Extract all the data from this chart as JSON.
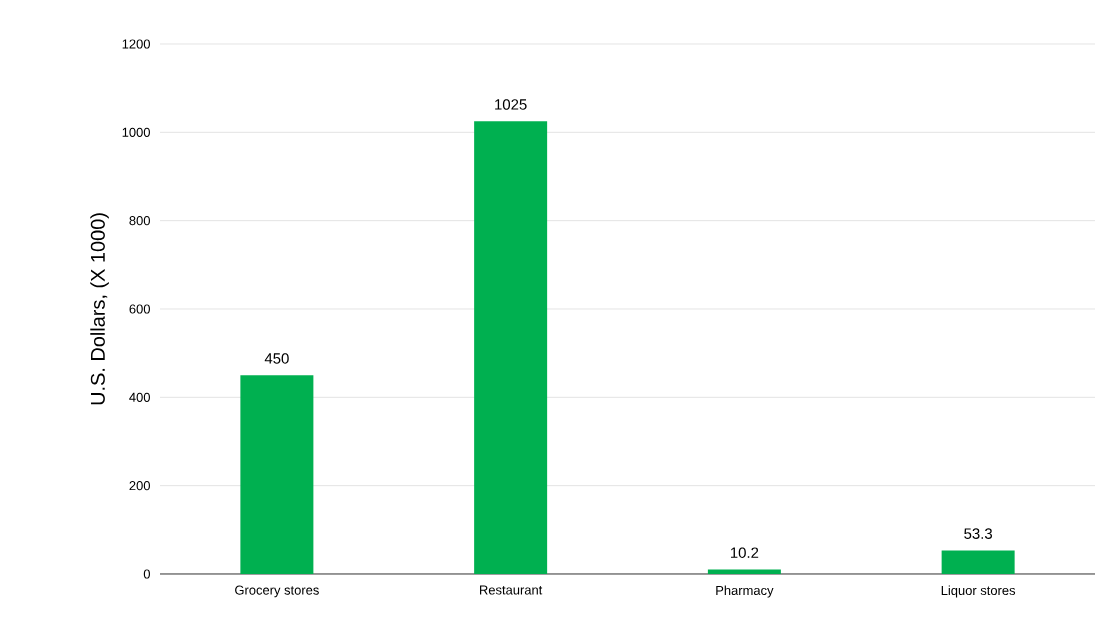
{
  "chart_data": {
    "type": "bar",
    "ylabel": "U.S. Dollars, (X 1000)",
    "categories": [
      "Grocery stores",
      "Restaurant",
      "Pharmacy",
      "Liquor stores"
    ],
    "values": [
      450,
      1025,
      10.2,
      53.3
    ],
    "color": "#00b050",
    "ylim": [
      0,
      1200
    ],
    "yticks": [
      0,
      200,
      400,
      600,
      800,
      1000,
      1200
    ],
    "grid": "y",
    "data_labels": true
  }
}
